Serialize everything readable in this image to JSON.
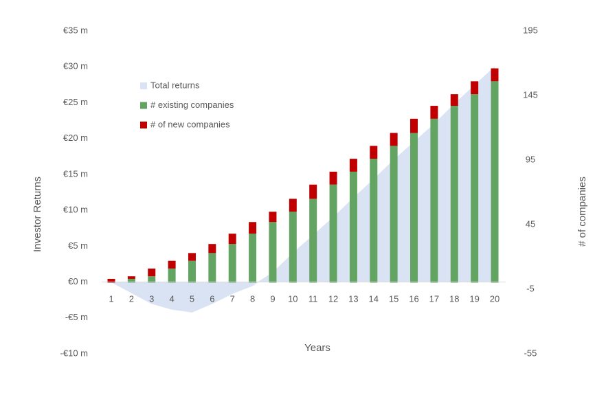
{
  "chart_data": {
    "type": "bar",
    "x_label": "Years",
    "y_label": "Investor Returns",
    "y2_label": "# of companies",
    "categories": [
      "1",
      "2",
      "3",
      "4",
      "5",
      "6",
      "7",
      "8",
      "9",
      "10",
      "11",
      "12",
      "13",
      "14",
      "15",
      "16",
      "17",
      "18",
      "19",
      "20"
    ],
    "series": [
      {
        "name": "Total returns",
        "type": "area",
        "axis": "y",
        "color": "#dae3f3",
        "values": [
          0,
          -1.5,
          -3,
          -3.8,
          -4.2,
          -3,
          -1.6,
          -0.5,
          1.3,
          4,
          6.5,
          9,
          11.7,
          14.3,
          17,
          19.5,
          22,
          24.8,
          27.4,
          30
        ]
      },
      {
        "name": "# existing companies",
        "type": "bar",
        "axis": "y2",
        "color": "#63a463",
        "values": [
          0,
          3,
          5,
          11,
          17,
          23,
          30,
          38,
          47,
          55,
          65,
          76,
          86,
          96,
          106,
          116,
          127,
          137,
          146,
          156
        ]
      },
      {
        "name": "# of new  companies",
        "type": "bar",
        "axis": "y2",
        "color": "#c00000",
        "values": [
          3,
          2,
          6,
          6,
          6,
          7,
          8,
          9,
          8,
          10,
          11,
          10,
          10,
          10,
          10,
          11,
          10,
          9,
          10,
          10
        ]
      }
    ],
    "ylim": [
      -10,
      35
    ],
    "yticks": [
      {
        "value": -10,
        "label": "-€10 m"
      },
      {
        "value": -5,
        "label": "-€5 m"
      },
      {
        "value": 0,
        "label": "€0 m"
      },
      {
        "value": 5,
        "label": "€5 m"
      },
      {
        "value": 10,
        "label": "€10 m"
      },
      {
        "value": 15,
        "label": "€15 m"
      },
      {
        "value": 20,
        "label": "€20 m"
      },
      {
        "value": 25,
        "label": "€25 m"
      },
      {
        "value": 30,
        "label": "€30 m"
      },
      {
        "value": 35,
        "label": "€35 m"
      }
    ],
    "y2lim": [
      -55,
      195
    ],
    "y2ticks": [
      -55,
      -5,
      45,
      95,
      145,
      195
    ],
    "grid": false,
    "legend": "upper left"
  }
}
